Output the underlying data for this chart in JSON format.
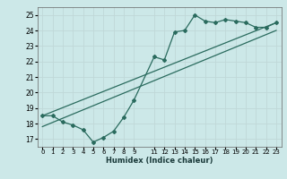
{
  "title": "",
  "xlabel": "Humidex (Indice chaleur)",
  "bg_color": "#cce8e8",
  "grid_color": "#c0d8d8",
  "line_color": "#2a6b5e",
  "xlim": [
    -0.5,
    23.5
  ],
  "ylim": [
    16.5,
    25.5
  ],
  "yticks": [
    17,
    18,
    19,
    20,
    21,
    22,
    23,
    24,
    25
  ],
  "xtick_positions": [
    0,
    1,
    2,
    3,
    4,
    5,
    6,
    7,
    8,
    9,
    11,
    12,
    13,
    14,
    15,
    16,
    17,
    18,
    19,
    20,
    21,
    22,
    23
  ],
  "xtick_labels": [
    "0",
    "1",
    "2",
    "3",
    "4",
    "5",
    "6",
    "7",
    "8",
    "9",
    "11",
    "12",
    "13",
    "14",
    "15",
    "16",
    "17",
    "18",
    "19",
    "20",
    "21",
    "22",
    "23"
  ],
  "series1_x": [
    0,
    1,
    2,
    3,
    4,
    5,
    6,
    7,
    8,
    9,
    11,
    12,
    13,
    14,
    15,
    16,
    17,
    18,
    19,
    20,
    21,
    22,
    23
  ],
  "series1_y": [
    18.5,
    18.5,
    18.1,
    17.9,
    17.6,
    16.8,
    17.1,
    17.5,
    18.4,
    19.5,
    22.3,
    22.1,
    23.9,
    24.0,
    25.0,
    24.6,
    24.5,
    24.7,
    24.6,
    24.5,
    24.2,
    24.2,
    24.5
  ],
  "line1_x": [
    0,
    23
  ],
  "line1_y": [
    18.5,
    24.5
  ],
  "line2_x": [
    0,
    23
  ],
  "line2_y": [
    17.8,
    24.0
  ]
}
